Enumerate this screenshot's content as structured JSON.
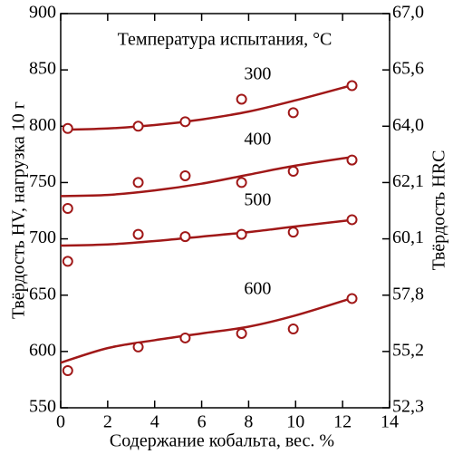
{
  "chart_data": {
    "type": "scatter",
    "legend_title": "Температура испытания, °C",
    "xlabel": "Содержание кобальта, вес. %",
    "ylabel": "Твёрдость HV, нагрузка 10 г",
    "y2label": "Твёрдость HRC",
    "color": "#a01818",
    "xlim": [
      0,
      14
    ],
    "xticks": [
      0,
      2,
      4,
      6,
      8,
      10,
      12,
      14
    ],
    "ylim": [
      550,
      900
    ],
    "yticks": [
      550,
      600,
      650,
      700,
      750,
      800,
      850,
      900
    ],
    "y2lim": [
      52.3,
      67.0
    ],
    "y2ticks": [
      {
        "value": 52.3,
        "label": "52,3"
      },
      {
        "value": 55.2,
        "label": "55,2"
      },
      {
        "value": 57.8,
        "label": "57,8"
      },
      {
        "value": 60.1,
        "label": "60,1"
      },
      {
        "value": 62.1,
        "label": "62,1"
      },
      {
        "value": 64.0,
        "label": "64,0"
      },
      {
        "value": 65.6,
        "label": "65,6"
      },
      {
        "value": 67.0,
        "label": "67,0"
      }
    ],
    "series": [
      {
        "name": "300",
        "x": [
          0.3,
          3.3,
          5.3,
          7.7,
          9.9,
          12.4
        ],
        "values": [
          798,
          800,
          804,
          824,
          812,
          836
        ],
        "fit_x": [
          0.3,
          2,
          4,
          6,
          8,
          10,
          12.5
        ],
        "fit": [
          797,
          798,
          801,
          806,
          813,
          823,
          837
        ]
      },
      {
        "name": "400",
        "x": [
          0.3,
          3.3,
          5.3,
          7.7,
          9.9,
          12.4
        ],
        "values": [
          727,
          750,
          756,
          750,
          760,
          770
        ],
        "fit_x": [
          0,
          2,
          4,
          6,
          8,
          10,
          12.5
        ],
        "fit": [
          738,
          739,
          743,
          749,
          757,
          765,
          773
        ]
      },
      {
        "name": "500",
        "x": [
          0.3,
          3.3,
          5.3,
          7.7,
          9.9,
          12.4
        ],
        "values": [
          680,
          704,
          702,
          704,
          706,
          717
        ],
        "fit_x": [
          0,
          2,
          4,
          6,
          8,
          10,
          12.5
        ],
        "fit": [
          694,
          695,
          698,
          702,
          706,
          711,
          717
        ]
      },
      {
        "name": "600",
        "x": [
          0.3,
          3.3,
          5.3,
          7.7,
          9.9,
          12.4
        ],
        "values": [
          583,
          604,
          612,
          616,
          620,
          647
        ],
        "fit_x": [
          0,
          2,
          4,
          6,
          8,
          10,
          12.5
        ],
        "fit": [
          590,
          603,
          610,
          616,
          622,
          632,
          648
        ]
      }
    ]
  }
}
